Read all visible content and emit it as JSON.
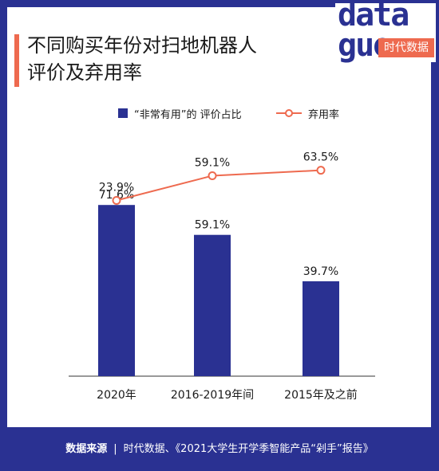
{
  "title": {
    "line1": "不同购买年份对扫地机器人",
    "line2": "评价及弃用率"
  },
  "logo": {
    "line1": "data",
    "line2": "guo",
    "badge": "时代数据"
  },
  "colors": {
    "bar": "#2a3192",
    "line": "#ee6a4f",
    "frame": "#2a3192",
    "accent": "#ee6a4f"
  },
  "chart_data": {
    "type": "bar",
    "categories": [
      "2020年",
      "2016-2019年间",
      "2015年及之前"
    ],
    "series": [
      {
        "name": "“非常有用”的 评价占比",
        "type": "bar",
        "values": [
          71.6,
          59.1,
          39.7
        ],
        "labels": [
          "71.6%",
          "59.1%",
          "39.7%"
        ]
      },
      {
        "name": "弃用率",
        "type": "line",
        "values": [
          23.9,
          59.1,
          63.5
        ],
        "labels": [
          "23.9%",
          "59.1%",
          "63.5%"
        ]
      }
    ],
    "legend_position": "top-center",
    "grid": false
  },
  "footer": {
    "source_label": "数据来源",
    "separator": "|",
    "source_text": "时代数据、《2021大学生开学季智能产品“剁手”报告》"
  }
}
